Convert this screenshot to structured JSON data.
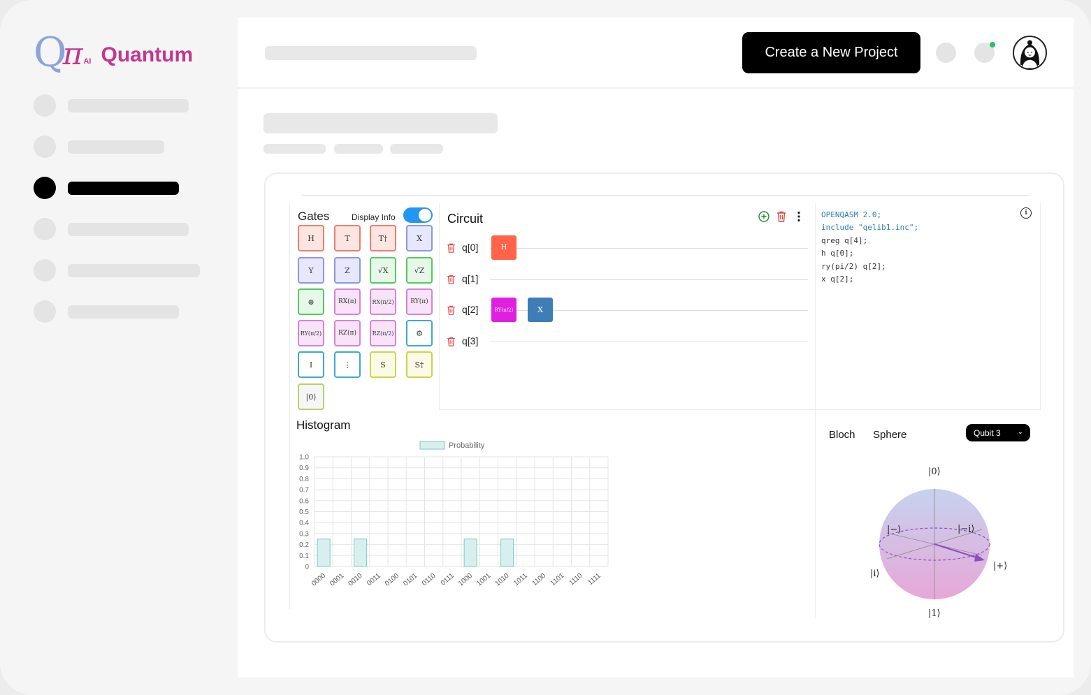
{
  "brand": {
    "letters": "Q",
    "pi": "π",
    "ai": "AI",
    "name": "Quantum"
  },
  "header": {
    "create_button": "Create a New Project"
  },
  "gates_panel": {
    "title": "Gates",
    "display_info_label": "Display Info",
    "display_info_on": true,
    "gates": [
      "H",
      "T",
      "T†",
      "X",
      "Y",
      "Z",
      "√X",
      "√Z",
      "⊕",
      "RX(π)",
      "RX(π/2)",
      "RY(π)",
      "RY(π/2)",
      "RZ(π)",
      "RZ(π/2)",
      "⚙",
      "I",
      "⋮",
      "S",
      "S†",
      "|0⟩"
    ]
  },
  "circuit": {
    "title": "Circuit",
    "qubits": [
      "q[0]",
      "q[1]",
      "q[2]",
      "q[3]"
    ],
    "placed_gates": [
      {
        "qubit": "q[0]",
        "label": "H",
        "color": "#ff6449"
      },
      {
        "qubit": "q[2]",
        "label": "RY(π/2)",
        "color": "#e020e0"
      },
      {
        "qubit": "q[2]",
        "label": "X",
        "color": "#3e7db7"
      }
    ]
  },
  "code": {
    "lines": [
      "OPENQASM 2.0;",
      "include \"qelib1.inc\";",
      "qreg q[4];",
      "h q[0];",
      "ry(pi/2) q[2];",
      "x q[2];"
    ]
  },
  "histogram": {
    "title": "Histogram",
    "legend": "Probability"
  },
  "chart_data": {
    "type": "bar",
    "title": "",
    "series": [
      {
        "name": "Probability",
        "values": [
          0.25,
          0,
          0.25,
          0,
          0,
          0,
          0,
          0,
          0.25,
          0,
          0.25,
          0,
          0,
          0,
          0,
          0
        ]
      }
    ],
    "categories": [
      "0000",
      "0001",
      "0010",
      "0011",
      "0100",
      "0101",
      "0110",
      "0111",
      "1000",
      "1001",
      "1010",
      "1011",
      "1100",
      "1101",
      "1110",
      "1111"
    ],
    "ylim": [
      0,
      1.0
    ],
    "yticks": [
      "0",
      "0.1",
      "0.2",
      "0.3",
      "0.4",
      "0.5",
      "0.6",
      "0.7",
      "0.8",
      "0.9",
      "1.0"
    ],
    "grid": true,
    "legend_position": "top",
    "colors": {
      "fill": "#d7f0ef",
      "stroke": "#7cc9c4"
    }
  },
  "bloch": {
    "title_word1": "Bloch",
    "title_word2": "Sphere",
    "selector": "Qubit 3",
    "labels": {
      "zero": "|0⟩",
      "one": "|1⟩",
      "plus": "|+⟩",
      "minus": "|−⟩",
      "i": "|i⟩",
      "minus_i": "|−i⟩"
    }
  }
}
